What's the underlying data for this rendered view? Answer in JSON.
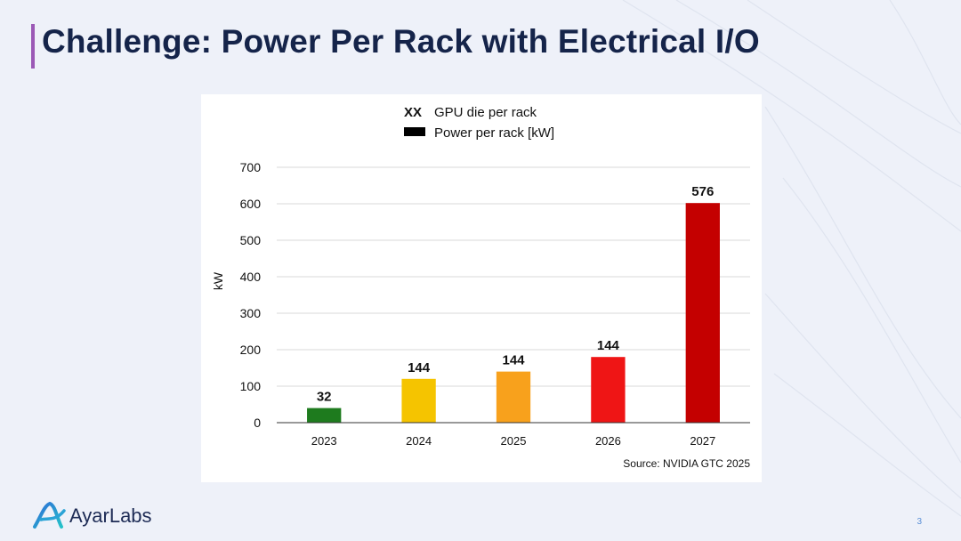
{
  "slide": {
    "title": "Challenge: Power Per Rack with Electrical I/O",
    "page_number": "3",
    "logo": {
      "name": "AyarLabs"
    }
  },
  "colors": {
    "title": "#15244a",
    "accent_bar": "#9b59b6",
    "bars": [
      "#1e7b1e",
      "#f5c400",
      "#f8a11c",
      "#ef1515",
      "#c40000"
    ]
  },
  "chart_data": {
    "type": "bar",
    "categories": [
      "2023",
      "2024",
      "2025",
      "2026",
      "2027"
    ],
    "series": [
      {
        "name": "Power per rack [kW]",
        "values": [
          40,
          120,
          140,
          180,
          602
        ]
      }
    ],
    "data_labels": [
      "32",
      "144",
      "144",
      "144",
      "576"
    ],
    "legend": [
      {
        "key": "XX",
        "label": "GPU die per rack"
      },
      {
        "key": "swatch",
        "label": "Power per rack [kW]"
      }
    ],
    "legend_position": "top",
    "ylabel": "kW",
    "xlabel": "",
    "yticks": [
      0,
      100,
      200,
      300,
      400,
      500,
      600,
      700
    ],
    "ylim": [
      0,
      700
    ],
    "grid": true,
    "source": "Source: NVIDIA GTC 2025"
  }
}
